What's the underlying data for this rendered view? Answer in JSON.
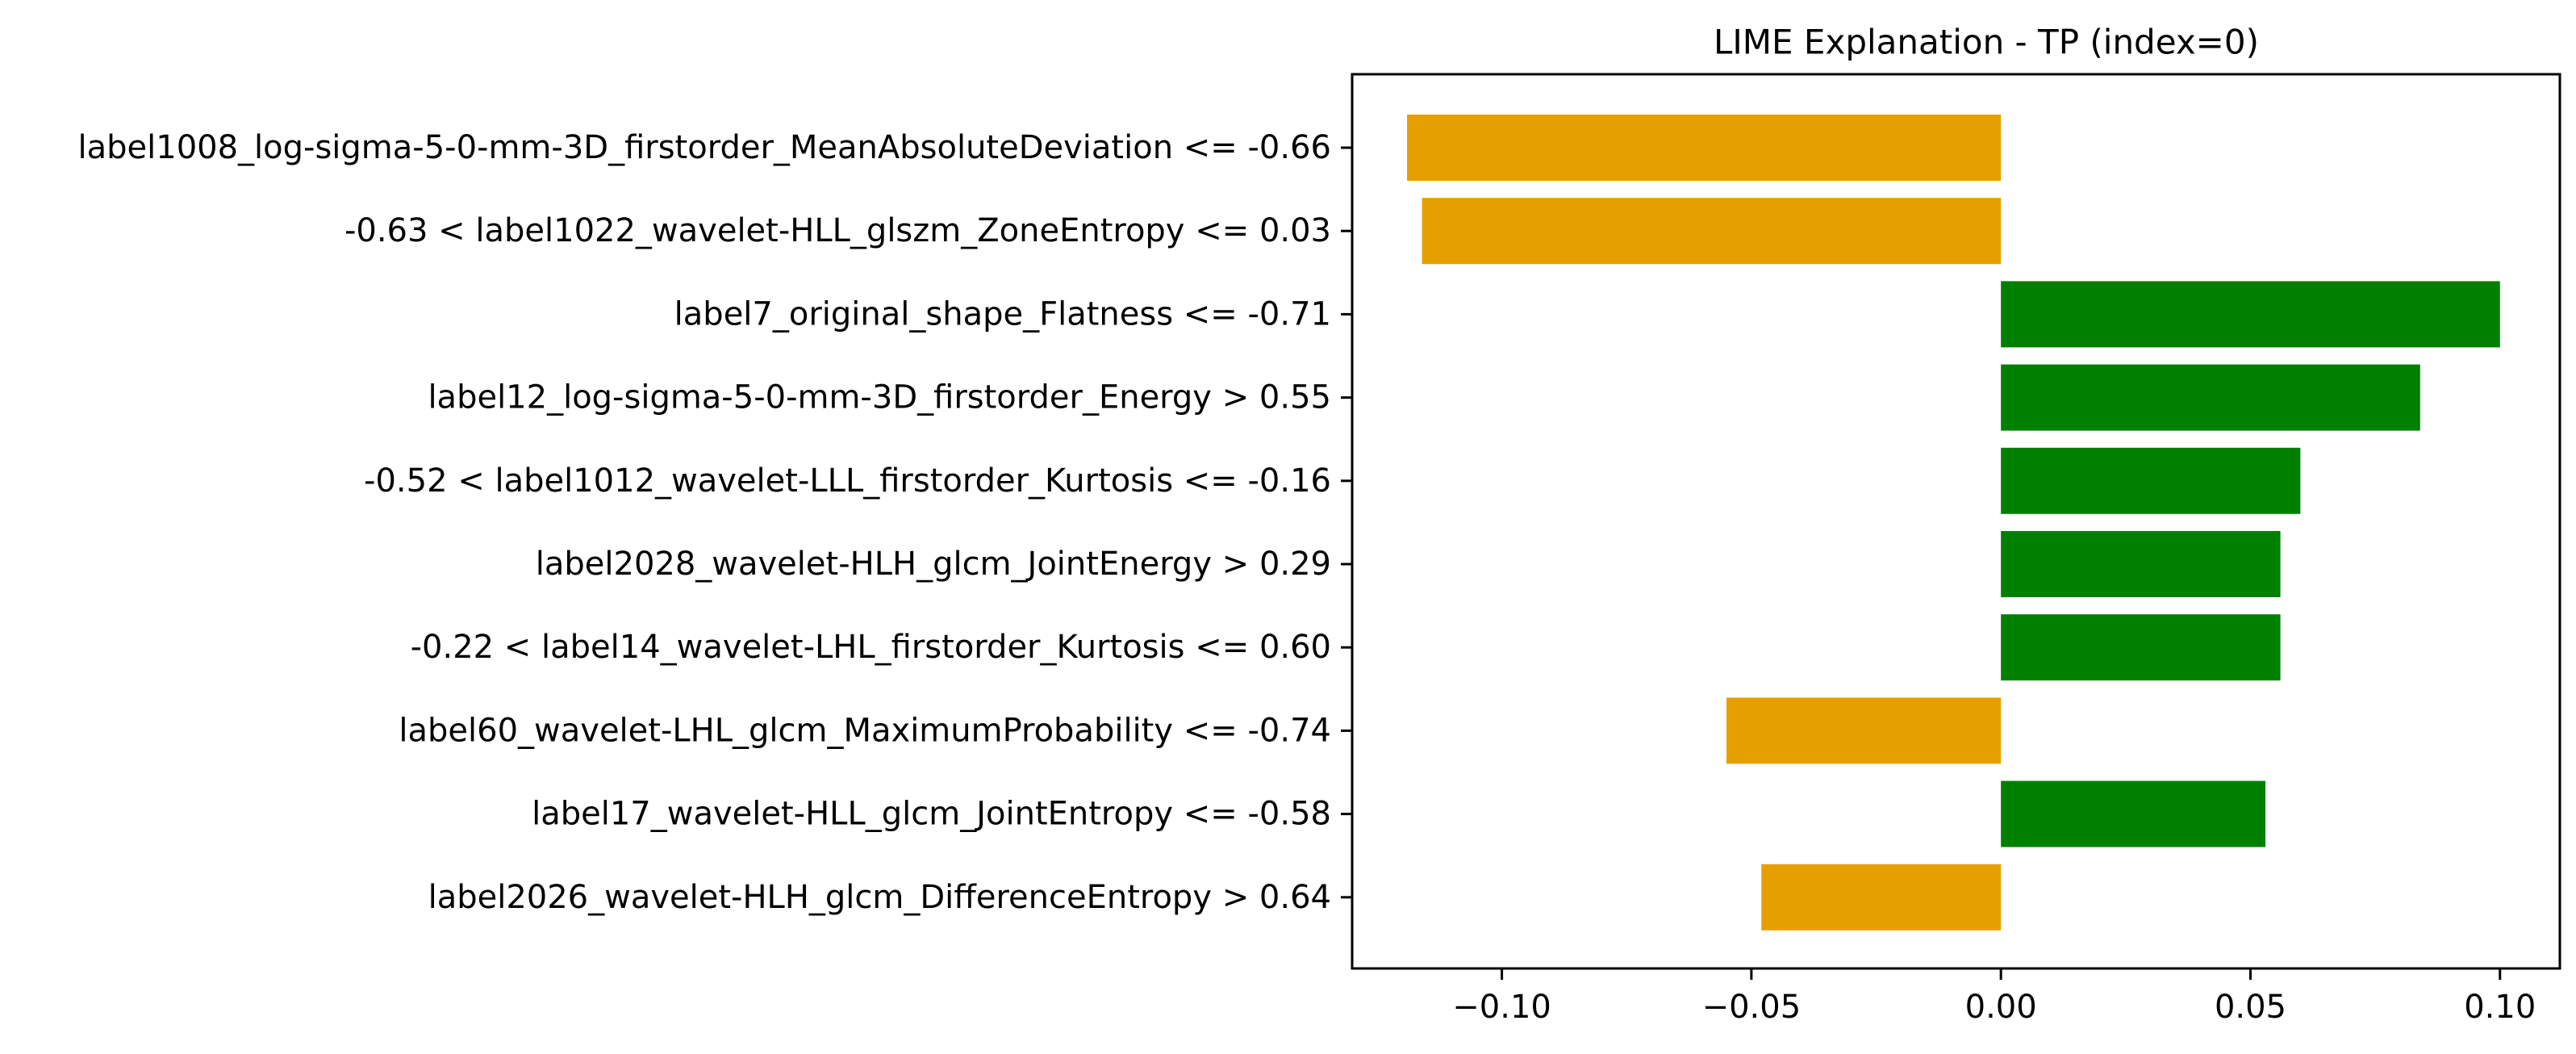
{
  "chart_data": {
    "type": "bar",
    "orientation": "horizontal",
    "title": "LIME Explanation - TP (index=0)",
    "xlabel": "",
    "ylabel": "",
    "xlim": [
      -0.13,
      0.112
    ],
    "xticks": [
      -0.1,
      -0.05,
      0.0,
      0.05,
      0.1
    ],
    "xtick_labels": [
      "−0.10",
      "−0.05",
      "0.00",
      "0.05",
      "0.10"
    ],
    "grid": false,
    "legend": "none",
    "colors": {
      "positive": "#008000",
      "negative": "#e69f00"
    },
    "categories": [
      "label1008_log-sigma-5-0-mm-3D_firstorder_MeanAbsoluteDeviation <= -0.66",
      "-0.63 < label1022_wavelet-HLL_glszm_ZoneEntropy <= 0.03",
      "label7_original_shape_Flatness <= -0.71",
      "label12_log-sigma-5-0-mm-3D_firstorder_Energy > 0.55",
      "-0.52 < label1012_wavelet-LLL_firstorder_Kurtosis <= -0.16",
      "label2028_wavelet-HLH_glcm_JointEnergy > 0.29",
      "-0.22 < label14_wavelet-LHL_firstorder_Kurtosis <= 0.60",
      "label60_wavelet-LHL_glcm_MaximumProbability <= -0.74",
      "label17_wavelet-HLL_glcm_JointEntropy <= -0.58",
      "label2026_wavelet-HLH_glcm_DifferenceEntropy > 0.64"
    ],
    "values": [
      -0.119,
      -0.116,
      0.1,
      0.084,
      0.06,
      0.056,
      0.056,
      -0.055,
      0.053,
      -0.048
    ]
  }
}
